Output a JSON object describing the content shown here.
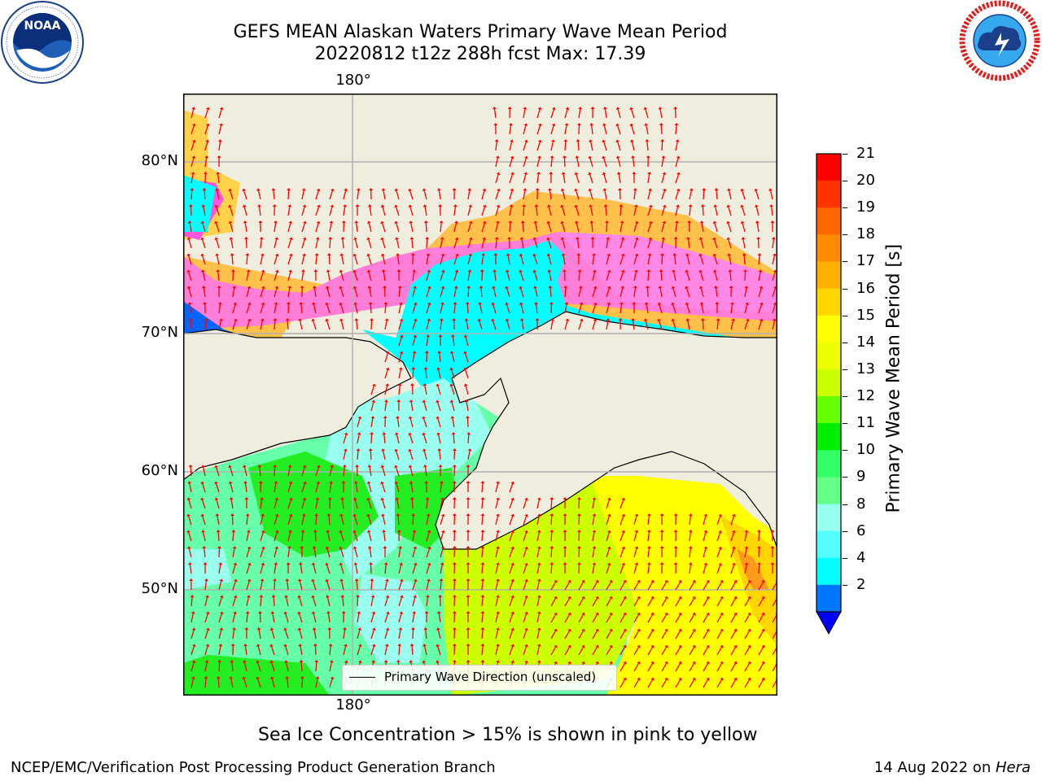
{
  "header": {
    "title_line1": "GEFS MEAN Alaskan Waters Primary Wave Mean Period",
    "title_line2": "20220812 t12z 288h fcst   Max: 17.39"
  },
  "logos": {
    "left": {
      "name": "NOAA",
      "ring_text": "NATIONAL OCEANIC AND ATMOSPHERIC ADMINISTRATION",
      "bottom_text": "U.S. DEPARTMENT OF COMMERCE"
    },
    "right": {
      "ring_text": "NATIONAL WEATHER SERVICE"
    }
  },
  "map": {
    "lon_label_top": "180°",
    "lon_label_bottom": "180°",
    "lat_labels": [
      "80°N",
      "70°N",
      "60°N",
      "50°N"
    ],
    "legend_label": "Primary Wave Direction (unscaled)",
    "colors": {
      "land": "#efedde",
      "grid": "#b0b0b0",
      "arrow": "#ff0000",
      "coast": "#000000"
    }
  },
  "colorbar": {
    "title": "Primary Wave Mean Period [s]",
    "ticks": [
      "21",
      "20",
      "19",
      "18",
      "17",
      "16",
      "15",
      "14",
      "13",
      "12",
      "11",
      "10",
      "9",
      "8",
      "6",
      "4",
      "2"
    ],
    "colors_top_to_bottom": [
      "#ff0000",
      "#ff3300",
      "#ff6600",
      "#ff8c00",
      "#ffb000",
      "#ffd700",
      "#ffff00",
      "#eeff00",
      "#ccff00",
      "#66ff00",
      "#00ee00",
      "#33ff66",
      "#66ff88",
      "#99ffee",
      "#55ffff",
      "#00ffff",
      "#0077ff"
    ],
    "extend_color": "#0000ff"
  },
  "footer": {
    "note": "Sea Ice Concentration > 15% is shown in pink to yellow",
    "left": "NCEP/EMC/Verification Post Processing Product Generation Branch",
    "right_prefix": "14 Aug 2022 on ",
    "right_host": "Hera"
  }
}
